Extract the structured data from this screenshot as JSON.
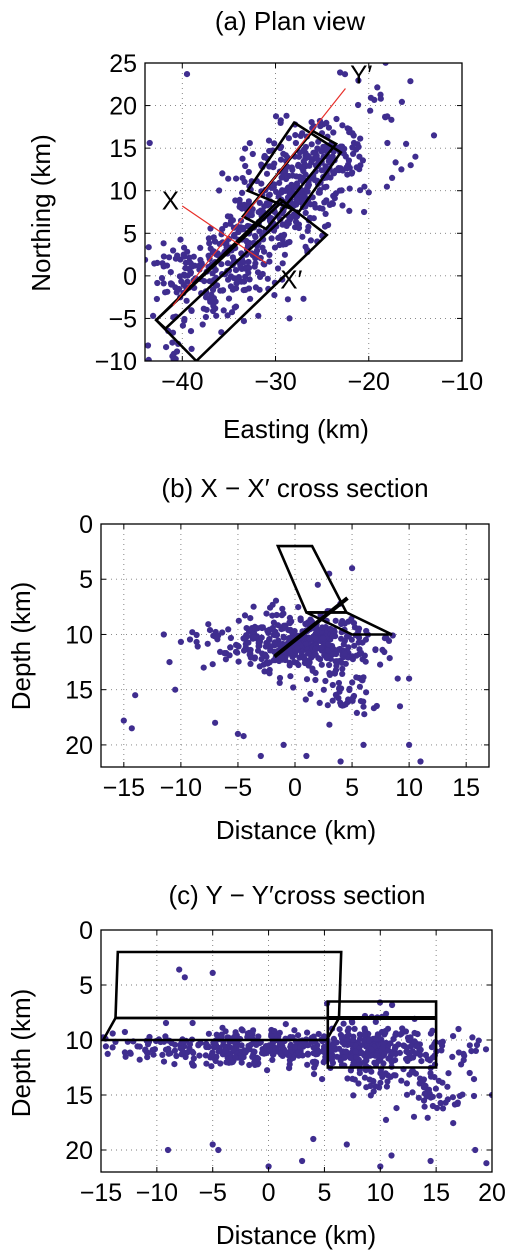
{
  "chart_data": [
    {
      "id": "plan",
      "type": "scatter",
      "title": "(a) Plan view",
      "xlabel": "Easting (km)",
      "ylabel": "Northing (km)",
      "xlim": [
        -44,
        -10
      ],
      "ylim": [
        -10,
        25
      ],
      "xticks": [
        -40,
        -30,
        -20,
        -10
      ],
      "yticks": [
        -10,
        -5,
        0,
        5,
        10,
        15,
        20,
        25
      ],
      "xtick_labels": [
        "−40",
        "−30",
        "−20",
        "−10"
      ],
      "ytick_labels": [
        "−10",
        "−5",
        "0",
        "5",
        "10",
        "15",
        "20",
        "25"
      ],
      "grid": true,
      "colors": {
        "points": "#3f2d8f",
        "profiles": "#e8302a",
        "outlines": "#000000"
      },
      "cluster": {
        "count": 520,
        "seed": 11,
        "center": [
          -31,
          6
        ],
        "angle_deg": 52,
        "sigma_along": 8.2,
        "sigma_across": 2.4,
        "extra": [
          {
            "center": [
              -27,
              13
            ],
            "sigma": 3.2,
            "count": 130
          },
          {
            "center": [
              -40,
              1
            ],
            "sigma": 2.0,
            "count": 60
          }
        ]
      },
      "points": [
        [
          -39.5,
          23.7
        ],
        [
          -43.5,
          15.6
        ],
        [
          -16,
          15.5
        ],
        [
          -13,
          16.5
        ],
        [
          -17.5,
          11.5
        ],
        [
          -15,
          14
        ],
        [
          -16.5,
          12.5
        ],
        [
          -20,
          9.8
        ],
        [
          -28.5,
          -5
        ],
        [
          -20.5,
          7.5
        ],
        [
          -18,
          15.6
        ],
        [
          -21,
          14
        ],
        [
          -27,
          -2.7
        ],
        [
          -15.5,
          13
        ]
      ],
      "profiles": [
        {
          "name": "Y",
          "points": [
            [
              -41,
              -3.5
            ],
            [
              -22.5,
              22
            ]
          ]
        },
        {
          "name": "X",
          "points": [
            [
              -40,
              8.2
            ],
            [
              -31,
              1.5
            ]
          ]
        }
      ],
      "polygons": [
        [
          [
            -28,
            18
          ],
          [
            -23,
            14.5
          ],
          [
            -27.5,
            7.5
          ],
          [
            -33,
            10
          ]
        ],
        [
          [
            -26,
            17
          ],
          [
            -23.5,
            15.5
          ],
          [
            -31,
            5.5
          ],
          [
            -33.5,
            7
          ]
        ],
        [
          [
            -42.8,
            -5.2
          ],
          [
            -29.5,
            9
          ],
          [
            -24.5,
            4.8
          ],
          [
            -38.5,
            -10
          ]
        ],
        [
          [
            -42.8,
            -5.2
          ],
          [
            -41.8,
            -6.2
          ],
          [
            -28.2,
            7.8
          ],
          [
            -29.2,
            8.8
          ]
        ]
      ],
      "labels": [
        {
          "text": "Y′",
          "x": -22,
          "y": 22.6
        },
        {
          "text": "X",
          "x": -42.2,
          "y": 7.8
        },
        {
          "text": "X′",
          "x": -29.5,
          "y": -1.5
        }
      ]
    },
    {
      "id": "xsec",
      "type": "scatter",
      "title": "(b) X − X′ cross section",
      "xlabel": "Distance (km)",
      "ylabel": "Depth (km)",
      "xlim": [
        -17,
        17
      ],
      "ylim": [
        0,
        22
      ],
      "yreverse": true,
      "xticks": [
        -15,
        -10,
        -5,
        0,
        5,
        10,
        15
      ],
      "yticks": [
        0,
        5,
        10,
        15,
        20
      ],
      "xtick_labels": [
        "−15",
        "−10",
        "−5",
        "0",
        "5",
        "10",
        "15"
      ],
      "ytick_labels": [
        "0",
        "5",
        "10",
        "15",
        "20"
      ],
      "grid": true,
      "cluster": {
        "count": 430,
        "seed": 23,
        "center": [
          0,
          10.8
        ],
        "angle_deg": 0,
        "sigma_along": 3.4,
        "sigma_across": 1.3,
        "extra": [
          {
            "center": [
              4.5,
              15.5
            ],
            "sigma": 1.6,
            "count": 45
          }
        ]
      },
      "points": [
        [
          -14,
          15.5
        ],
        [
          -15,
          17.8
        ],
        [
          -14.3,
          18.5
        ],
        [
          -10.5,
          15
        ],
        [
          -11,
          12.5
        ],
        [
          -9,
          9.8
        ],
        [
          -8,
          13
        ],
        [
          -7,
          18
        ],
        [
          -5,
          19
        ],
        [
          -4.5,
          19.2
        ],
        [
          -3,
          21
        ],
        [
          -1,
          20
        ],
        [
          1,
          21
        ],
        [
          4,
          21.5
        ],
        [
          2,
          5.5
        ],
        [
          3,
          4.5
        ],
        [
          5,
          4
        ],
        [
          9,
          14
        ],
        [
          10,
          20
        ],
        [
          11,
          21.5
        ],
        [
          -11.5,
          10
        ],
        [
          6,
          20
        ],
        [
          9.2,
          16.5
        ],
        [
          10,
          14
        ]
      ],
      "polygons": [
        [
          [
            -1.5,
            2
          ],
          [
            1.5,
            2
          ],
          [
            4.5,
            8
          ],
          [
            1,
            8
          ]
        ],
        [
          [
            1,
            8
          ],
          [
            4.5,
            8
          ],
          [
            8.5,
            10
          ],
          [
            5,
            10
          ]
        ]
      ],
      "lines": [
        [
          [
            -1.8,
            12
          ],
          [
            4.6,
            6.7
          ]
        ]
      ]
    },
    {
      "id": "ysec",
      "type": "scatter",
      "title": "(c) Y − Y′cross section",
      "xlabel": "Distance (km)",
      "ylabel": "Depth (km)",
      "xlim": [
        -15,
        20
      ],
      "ylim": [
        0,
        22
      ],
      "yreverse": true,
      "xticks": [
        -15,
        -10,
        -5,
        0,
        5,
        10,
        15,
        20
      ],
      "yticks": [
        0,
        5,
        10,
        15,
        20
      ],
      "xtick_labels": [
        "−15",
        "−10",
        "−5",
        "0",
        "5",
        "10",
        "15",
        "20"
      ],
      "ytick_labels": [
        "0",
        "5",
        "10",
        "15",
        "20"
      ],
      "grid": true,
      "cluster": {
        "count": 470,
        "seed": 37,
        "center": [
          1.5,
          10.8
        ],
        "angle_deg": 0,
        "sigma_along": 7.5,
        "sigma_across": 0.8,
        "extra": [
          {
            "center": [
              9.5,
              11
            ],
            "sigma": 2.2,
            "count": 180
          },
          {
            "center": [
              15,
              14.8
            ],
            "sigma": 1.8,
            "count": 50
          }
        ]
      },
      "points": [
        [
          -8,
          3.6
        ],
        [
          -5,
          3.9
        ],
        [
          -7.5,
          4.3
        ],
        [
          -9,
          20
        ],
        [
          -5,
          19.5
        ],
        [
          -4.5,
          20
        ],
        [
          0,
          21.5
        ],
        [
          3,
          21
        ],
        [
          4,
          19
        ],
        [
          7,
          19.5
        ],
        [
          10,
          21.5
        ],
        [
          11,
          20.5
        ],
        [
          14.5,
          21
        ],
        [
          18.5,
          20
        ],
        [
          19.5,
          21.2
        ],
        [
          17,
          9
        ],
        [
          18,
          13
        ],
        [
          20,
          15
        ]
      ],
      "polygons": [
        [
          [
            -13.5,
            2
          ],
          [
            6.5,
            2
          ],
          [
            6.3,
            8
          ],
          [
            -13.7,
            8
          ]
        ],
        [
          [
            -13.7,
            8
          ],
          [
            6.3,
            8
          ],
          [
            5.2,
            10
          ],
          [
            -14.8,
            10
          ]
        ],
        [
          [
            5.3,
            6.5
          ],
          [
            15,
            6.5
          ],
          [
            15,
            12.5
          ],
          [
            5.3,
            12.5
          ]
        ]
      ],
      "lines": [
        [
          [
            5.3,
            8
          ],
          [
            15,
            8
          ]
        ]
      ]
    }
  ]
}
